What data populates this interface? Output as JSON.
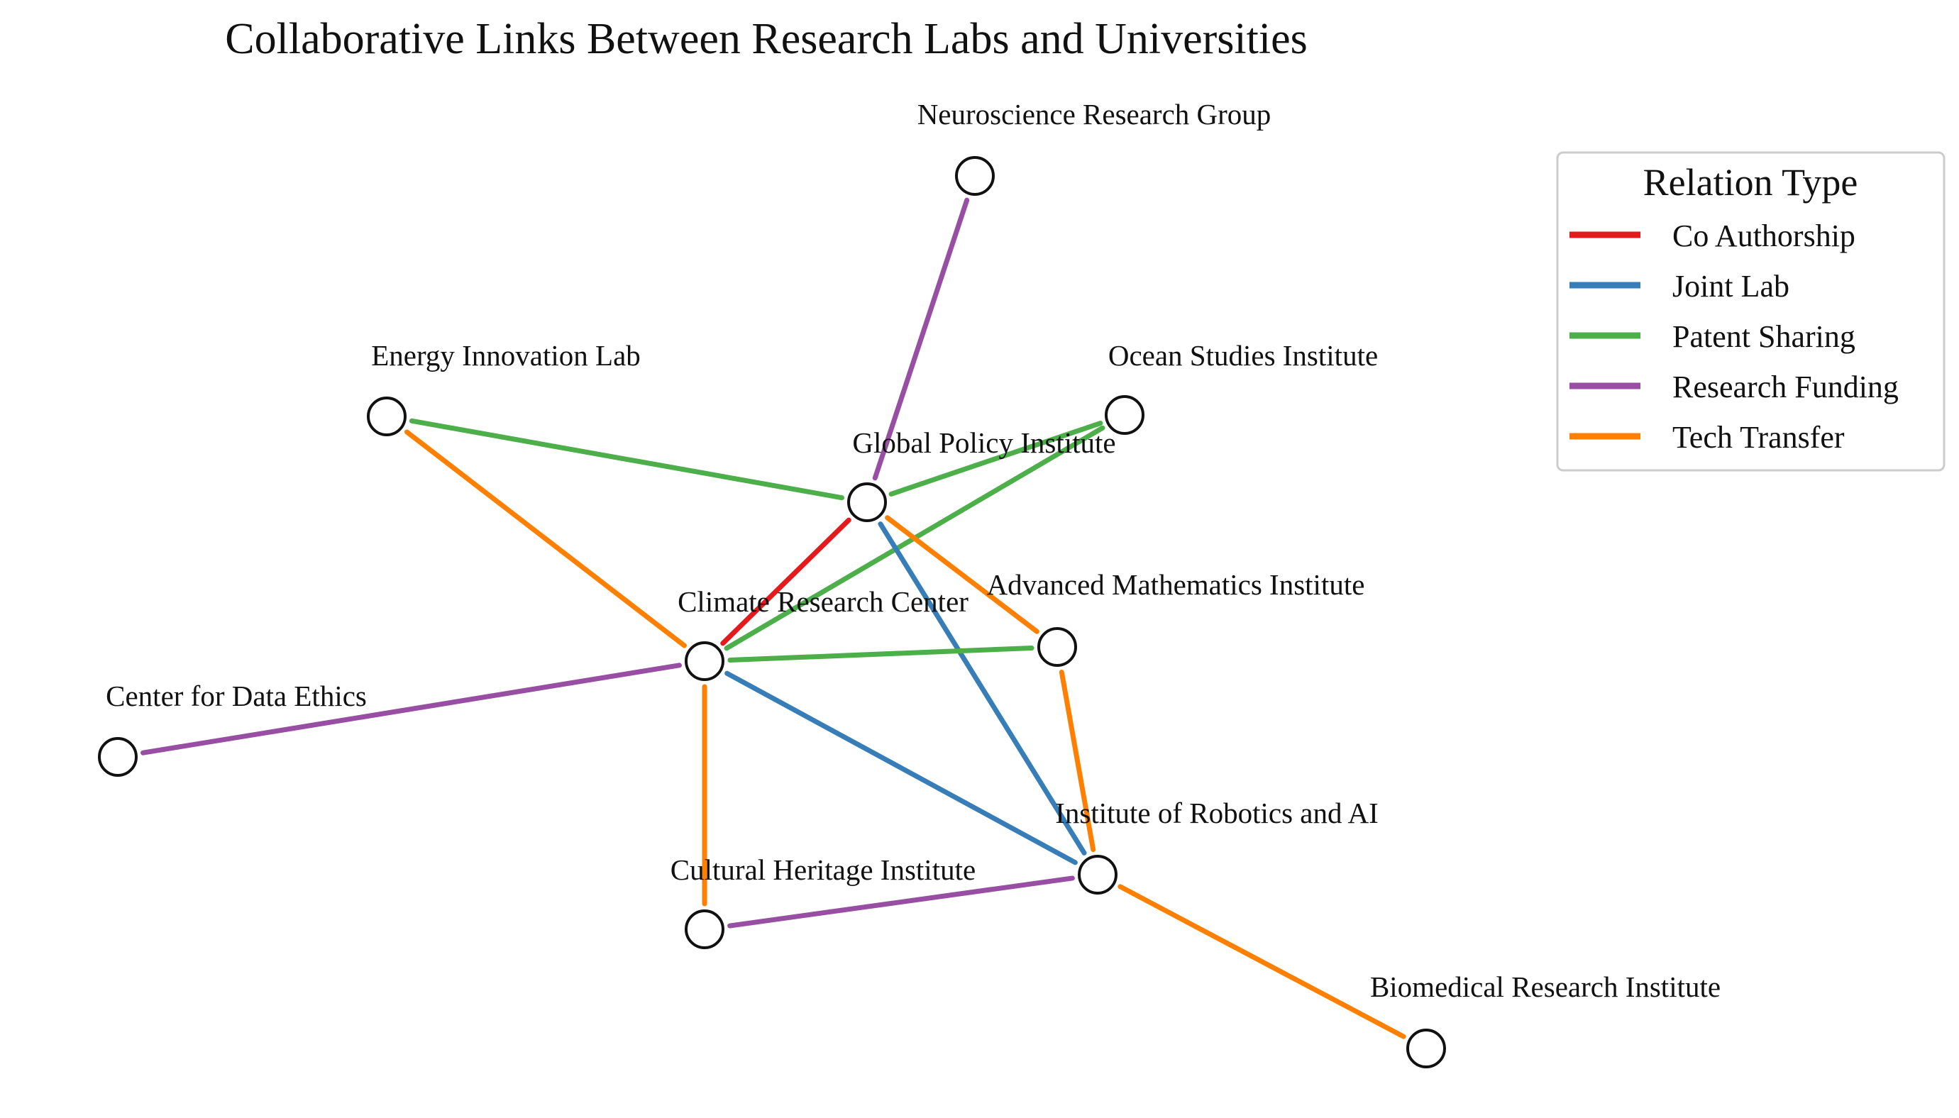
{
  "title": "Collaborative Links Between Research Labs and Universities",
  "legend": {
    "title": "Relation Type",
    "items": [
      {
        "label": "Co Authorship",
        "color": "#e41a1c"
      },
      {
        "label": "Joint Lab",
        "color": "#377eb8"
      },
      {
        "label": "Patent Sharing",
        "color": "#4daf4a"
      },
      {
        "label": "Research Funding",
        "color": "#984ea3"
      },
      {
        "label": "Tech Transfer",
        "color": "#ff7f00"
      }
    ]
  },
  "nodes": [
    {
      "id": "neuro",
      "label": "Neuroscience Research Group"
    },
    {
      "id": "energy",
      "label": "Energy Innovation Lab"
    },
    {
      "id": "ocean",
      "label": "Ocean Studies Institute"
    },
    {
      "id": "global",
      "label": "Global Policy Institute"
    },
    {
      "id": "climate",
      "label": "Climate Research Center"
    },
    {
      "id": "math",
      "label": "Advanced Mathematics Institute"
    },
    {
      "id": "ethics",
      "label": "Center for Data Ethics"
    },
    {
      "id": "robotics",
      "label": "Institute of Robotics and AI"
    },
    {
      "id": "heritage",
      "label": "Cultural Heritage Institute"
    },
    {
      "id": "biomed",
      "label": "Biomedical Research Institute"
    }
  ],
  "edges": [
    {
      "source": "neuro",
      "target": "global",
      "relation": "Research Funding"
    },
    {
      "source": "energy",
      "target": "global",
      "relation": "Patent Sharing"
    },
    {
      "source": "energy",
      "target": "climate",
      "relation": "Tech Transfer"
    },
    {
      "source": "global",
      "target": "ocean",
      "relation": "Patent Sharing"
    },
    {
      "source": "climate",
      "target": "ocean",
      "relation": "Patent Sharing"
    },
    {
      "source": "global",
      "target": "climate",
      "relation": "Co Authorship"
    },
    {
      "source": "global",
      "target": "math",
      "relation": "Tech Transfer"
    },
    {
      "source": "global",
      "target": "robotics",
      "relation": "Joint Lab"
    },
    {
      "source": "climate",
      "target": "math",
      "relation": "Patent Sharing"
    },
    {
      "source": "ethics",
      "target": "climate",
      "relation": "Research Funding"
    },
    {
      "source": "climate",
      "target": "robotics",
      "relation": "Joint Lab"
    },
    {
      "source": "climate",
      "target": "heritage",
      "relation": "Tech Transfer"
    },
    {
      "source": "math",
      "target": "robotics",
      "relation": "Tech Transfer"
    },
    {
      "source": "heritage",
      "target": "robotics",
      "relation": "Research Funding"
    },
    {
      "source": "robotics",
      "target": "biomed",
      "relation": "Tech Transfer"
    }
  ]
}
